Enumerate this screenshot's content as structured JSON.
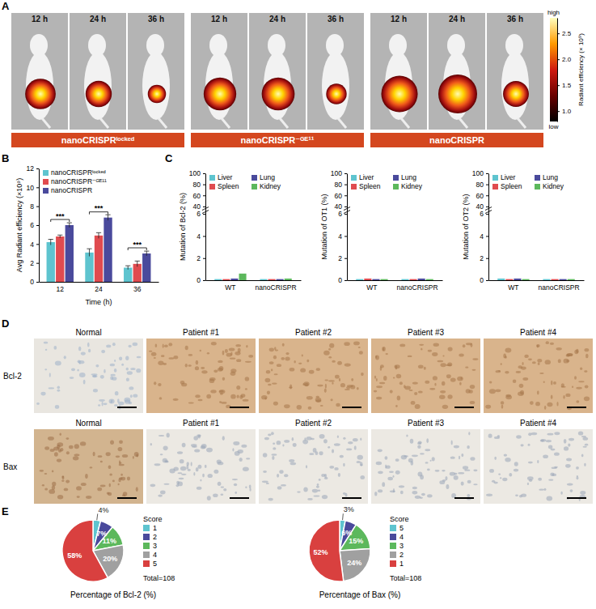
{
  "panel_labels": [
    "A",
    "B",
    "C",
    "D",
    "E"
  ],
  "panel_a": {
    "groups": [
      {
        "label": "nanoCRISPRˡᵒᶜᵏᵉᵈ",
        "times": [
          "12 h",
          "24 h",
          "36 h"
        ]
      },
      {
        "label": "nanoCRISPR⁻ᴳᴱ¹¹",
        "times": [
          "12 h",
          "24 h",
          "36 h"
        ]
      },
      {
        "label": "nanoCRISPR",
        "times": [
          "12 h",
          "24 h",
          "36 h"
        ]
      }
    ],
    "colorbar": {
      "title": "Radiant efficiency (× 10⁹)",
      "high": "high",
      "low": "low",
      "range": [
        0.8,
        2.8
      ],
      "ticks": [
        {
          "value": 1,
          "label": "1.0"
        },
        1.5,
        {
          "value": 2,
          "label": "2.0"
        },
        2.5
      ]
    }
  },
  "chart_data": [
    {
      "type": "bar",
      "categories": [
        "12",
        "24",
        "36"
      ],
      "x_label": "Time (h)",
      "y_label": "Avg Radiant efficiency (×10⁹)",
      "ylim": [
        0,
        12
      ],
      "yticks": [
        0,
        2,
        4,
        6,
        8,
        10,
        12
      ],
      "legend": "top-left",
      "series": [
        {
          "name": "nanoCRISPRˡᵒᶜᵏᵉᵈ",
          "color": "#5ec4cf",
          "values": [
            4.2,
            3.1,
            1.5
          ],
          "errors": [
            0.3,
            0.4,
            0.2
          ]
        },
        {
          "name": "nanoCRISPR⁻ᴳᴱ¹¹",
          "color": "#e04b4f",
          "values": [
            4.8,
            4.9,
            1.9
          ],
          "errors": [
            0.15,
            0.3,
            0.3
          ]
        },
        {
          "name": "nanoCRISPR",
          "color": "#4a4a9c",
          "values": [
            6.0,
            6.8,
            3.0
          ],
          "errors": [
            0.25,
            0.3,
            0.25
          ]
        }
      ],
      "annotations": [
        {
          "text": "***",
          "x": "12",
          "y": 6.6
        },
        {
          "text": "***",
          "x": "24",
          "y": 7.4
        },
        {
          "text": "***",
          "x": "36",
          "y": 3.6
        }
      ]
    },
    {
      "type": "bar",
      "categories": [
        "WT",
        "nanoCRISPR"
      ],
      "y_label": "Mutation of Bcl-2 (%)",
      "ylim": [
        0,
        100
      ],
      "yticks": [
        0,
        2,
        4,
        6,
        40,
        60,
        80,
        100
      ],
      "legend": "top-left",
      "series": [
        {
          "name": "Liver",
          "color": "#5ec4cf",
          "values": [
            0.1,
            0.1
          ]
        },
        {
          "name": "Spleen",
          "color": "#e04b4f",
          "values": [
            0.1,
            0.1
          ]
        },
        {
          "name": "Lung",
          "color": "#4a4a9c",
          "values": [
            0.15,
            0.1
          ]
        },
        {
          "name": "Kidney",
          "color": "#5cb85c",
          "values": [
            0.6,
            0.15
          ]
        }
      ]
    },
    {
      "type": "bar",
      "categories": [
        "WT",
        "nanoCRISPR"
      ],
      "y_label": "Mutation of OT1 (%)",
      "ylim": [
        0,
        100
      ],
      "yticks": [
        0,
        2,
        4,
        6,
        40,
        60,
        80,
        100
      ],
      "legend": "top-left",
      "series": [
        {
          "name": "Liver",
          "color": "#5ec4cf",
          "values": [
            0.1,
            0.1
          ]
        },
        {
          "name": "Spleen",
          "color": "#e04b4f",
          "values": [
            0.15,
            0.1
          ]
        },
        {
          "name": "Lung",
          "color": "#4a4a9c",
          "values": [
            0.1,
            0.15
          ]
        },
        {
          "name": "Kidney",
          "color": "#5cb85c",
          "values": [
            0.1,
            0.1
          ]
        }
      ]
    },
    {
      "type": "bar",
      "categories": [
        "WT",
        "nanoCRISPR"
      ],
      "y_label": "Mutation of OT2 (%)",
      "ylim": [
        0,
        100
      ],
      "yticks": [
        0,
        2,
        4,
        6,
        40,
        60,
        80,
        100
      ],
      "legend": "top-left",
      "series": [
        {
          "name": "Liver",
          "color": "#5ec4cf",
          "values": [
            0.15,
            0.1
          ]
        },
        {
          "name": "Spleen",
          "color": "#e04b4f",
          "values": [
            0.1,
            0.1
          ]
        },
        {
          "name": "Lung",
          "color": "#4a4a9c",
          "values": [
            0.15,
            0.1
          ]
        },
        {
          "name": "Kidney",
          "color": "#5cb85c",
          "values": [
            0.1,
            0.1
          ]
        }
      ]
    },
    {
      "type": "pie",
      "title": "Percentage of Bcl-2 (%)",
      "legend_title": "Score",
      "legend": "right",
      "categories": [
        "1",
        "2",
        "3",
        "4",
        "5"
      ],
      "values": [
        4,
        7,
        11,
        20,
        58
      ],
      "value_labels": [
        "4%",
        "7%",
        "11%",
        "20%",
        "58%"
      ],
      "colors": [
        "#5ec4cf",
        "#4a4a9c",
        "#5cb85c",
        "#a0a0a0",
        "#d9403f"
      ],
      "data_labels": true,
      "annotations": [
        {
          "text": "Total=108"
        }
      ]
    },
    {
      "type": "pie",
      "title": "Percentage of Bax (%)",
      "legend_title": "Score",
      "legend": "right",
      "categories": [
        "5",
        "4",
        "3",
        "2",
        "1"
      ],
      "values": [
        3,
        6,
        15,
        24,
        52
      ],
      "value_labels": [
        "3%",
        "6%",
        "15%",
        "24%",
        "52%"
      ],
      "colors": [
        "#5ec4cf",
        "#4a4a9c",
        "#5cb85c",
        "#a0a0a0",
        "#d9403f"
      ],
      "data_labels": true,
      "annotations": [
        {
          "text": "Total=108"
        }
      ]
    }
  ],
  "panel_d": {
    "rows": [
      "Bcl-2",
      "Bax"
    ],
    "columns": [
      "Normal",
      "Patient #1",
      "Patient #2",
      "Patient #3",
      "Patient #4"
    ]
  }
}
